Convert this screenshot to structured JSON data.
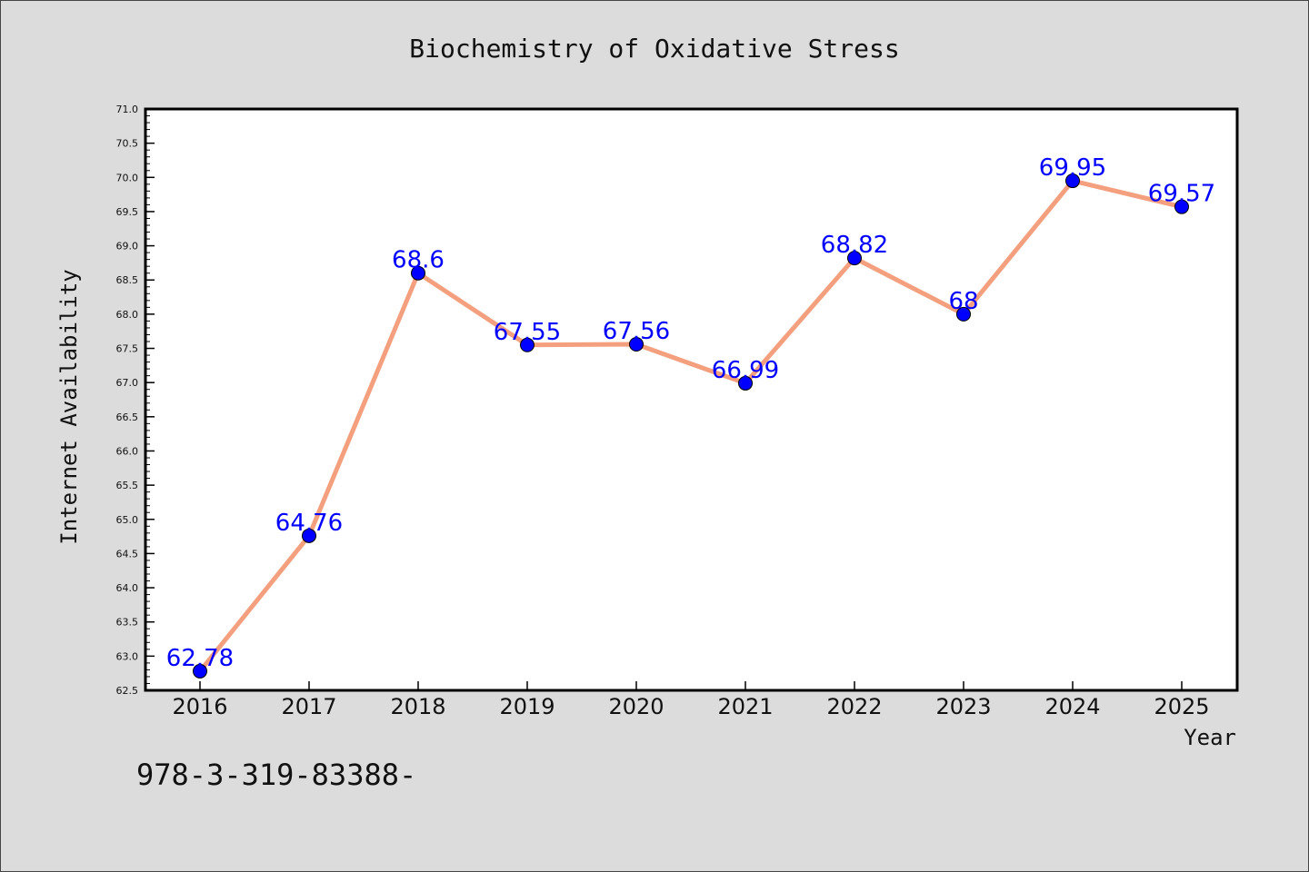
{
  "chart_data": {
    "type": "line",
    "title": "Biochemistry of Oxidative Stress",
    "xlabel": "Year",
    "ylabel": "Internet Availability",
    "categories": [
      "2016",
      "2017",
      "2018",
      "2019",
      "2020",
      "2021",
      "2022",
      "2023",
      "2024",
      "2025"
    ],
    "series": [
      {
        "values": [
          62.78,
          64.76,
          68.6,
          67.55,
          67.56,
          66.99,
          68.82,
          68,
          69.95,
          69.57
        ],
        "labels": [
          "62.78",
          "64.76",
          "68.6",
          "67.55",
          "67.56",
          "66.99",
          "68.82",
          "68",
          "69.95",
          "69.57"
        ]
      }
    ],
    "ylim": [
      62.5,
      71.0
    ],
    "yticks": [
      "62.5",
      "63.0",
      "63.5",
      "64.0",
      "64.5",
      "65.0",
      "65.5",
      "66.0",
      "66.5",
      "67.0",
      "67.5",
      "68.0",
      "68.5",
      "69.0",
      "69.5",
      "70.0",
      "70.5",
      "71.0"
    ],
    "grid": false,
    "colors": {
      "line": "#f4a07e",
      "marker": "#0000ff",
      "data_label": "#0000ff"
    }
  },
  "footnote": "978-3-319-83388-"
}
